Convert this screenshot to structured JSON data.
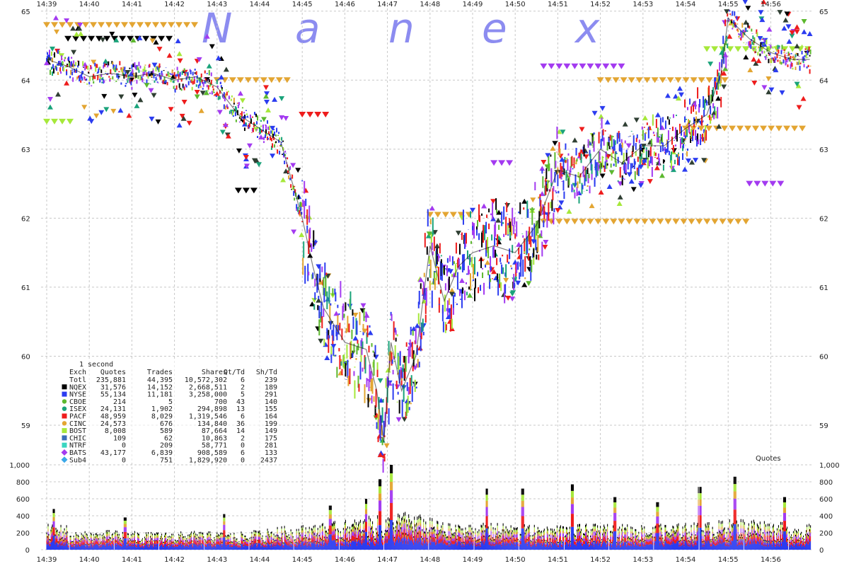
{
  "watermark": [
    "N",
    "a",
    "n",
    "e",
    "x"
  ],
  "chart_data": [
    {
      "type": "scatter",
      "title": "",
      "xlabel": "",
      "ylabel": "",
      "x_ticks": [
        "14:39",
        "14:40",
        "14:41",
        "14:42",
        "14:43",
        "14:44",
        "14:45",
        "14:46",
        "14:47",
        "14:48",
        "14:49",
        "14:50",
        "14:51",
        "14:52",
        "14:53",
        "14:54",
        "14:55",
        "14:56"
      ],
      "y_ticks": [
        "65",
        "64",
        "63",
        "62",
        "61",
        "60",
        "59"
      ],
      "ylim": [
        58.6,
        65.1
      ],
      "grid": true,
      "price_path": [
        {
          "t": "14:39:00",
          "v": 64.3
        },
        {
          "t": "14:39:30",
          "v": 64.2
        },
        {
          "t": "14:40:00",
          "v": 64.05
        },
        {
          "t": "14:40:30",
          "v": 64.1
        },
        {
          "t": "14:41:00",
          "v": 64.05
        },
        {
          "t": "14:41:30",
          "v": 64.1
        },
        {
          "t": "14:42:00",
          "v": 64.0
        },
        {
          "t": "14:42:30",
          "v": 64.05
        },
        {
          "t": "14:43:00",
          "v": 63.9
        },
        {
          "t": "14:43:30",
          "v": 63.5
        },
        {
          "t": "14:44:00",
          "v": 63.3
        },
        {
          "t": "14:44:30",
          "v": 63.1
        },
        {
          "t": "14:45:00",
          "v": 62.0
        },
        {
          "t": "14:45:15",
          "v": 61.3
        },
        {
          "t": "14:45:30",
          "v": 60.7
        },
        {
          "t": "14:46:00",
          "v": 60.2
        },
        {
          "t": "14:46:30",
          "v": 60.1
        },
        {
          "t": "14:46:45",
          "v": 59.5
        },
        {
          "t": "14:46:55",
          "v": 58.75
        },
        {
          "t": "14:47:05",
          "v": 60.2
        },
        {
          "t": "14:47:20",
          "v": 59.5
        },
        {
          "t": "14:47:40",
          "v": 60.0
        },
        {
          "t": "14:48:00",
          "v": 61.6
        },
        {
          "t": "14:48:20",
          "v": 60.8
        },
        {
          "t": "14:48:40",
          "v": 61.3
        },
        {
          "t": "14:49:00",
          "v": 61.5
        },
        {
          "t": "14:49:30",
          "v": 61.6
        },
        {
          "t": "14:50:00",
          "v": 61.5
        },
        {
          "t": "14:50:30",
          "v": 61.9
        },
        {
          "t": "14:51:00",
          "v": 62.7
        },
        {
          "t": "14:51:30",
          "v": 62.6
        },
        {
          "t": "14:52:00",
          "v": 63.0
        },
        {
          "t": "14:52:30",
          "v": 62.8
        },
        {
          "t": "14:53:00",
          "v": 63.05
        },
        {
          "t": "14:53:30",
          "v": 63.05
        },
        {
          "t": "14:54:00",
          "v": 63.3
        },
        {
          "t": "14:54:30",
          "v": 63.5
        },
        {
          "t": "14:54:50",
          "v": 64.1
        },
        {
          "t": "14:55:00",
          "v": 64.9
        },
        {
          "t": "14:55:30",
          "v": 64.6
        },
        {
          "t": "14:56:00",
          "v": 64.4
        },
        {
          "t": "14:56:30",
          "v": 64.3
        },
        {
          "t": "14:56:55",
          "v": 64.3
        }
      ],
      "quote_levels": [
        {
          "exchange": "CINC",
          "v": 64.8,
          "from": "14:39:00",
          "to": "14:42:30"
        },
        {
          "exchange": "CINC",
          "v": 64.0,
          "from": "14:43:00",
          "to": "14:44:40"
        },
        {
          "exchange": "CINC",
          "v": 62.05,
          "from": "14:48:00",
          "to": "14:49:00"
        },
        {
          "exchange": "CINC",
          "v": 61.95,
          "from": "14:50:40",
          "to": "14:55:30"
        },
        {
          "exchange": "CINC",
          "v": 63.3,
          "from": "14:54:00",
          "to": "14:56:55"
        },
        {
          "exchange": "CINC",
          "v": 64.0,
          "from": "14:52:00",
          "to": "14:55:00"
        },
        {
          "exchange": "BATS",
          "v": 64.2,
          "from": "14:50:40",
          "to": "14:52:40"
        },
        {
          "exchange": "BATS",
          "v": 62.8,
          "from": "14:49:30",
          "to": "14:50:00"
        },
        {
          "exchange": "BATS",
          "v": 62.5,
          "from": "14:55:30",
          "to": "14:56:20"
        },
        {
          "exchange": "PACF",
          "v": 63.5,
          "from": "14:45:00",
          "to": "14:45:40"
        },
        {
          "exchange": "NQEX",
          "v": 64.6,
          "from": "14:39:30",
          "to": "14:42:00"
        },
        {
          "exchange": "NQEX",
          "v": 62.4,
          "from": "14:43:30",
          "to": "14:44:00"
        },
        {
          "exchange": "BOST",
          "v": 63.4,
          "from": "14:39:00",
          "to": "14:39:40"
        },
        {
          "exchange": "BOST",
          "v": 64.45,
          "from": "14:54:30",
          "to": "14:56:55"
        }
      ]
    },
    {
      "type": "bar",
      "series_label": "Quotes",
      "y_ticks": [
        "1,000",
        "800",
        "600",
        "400",
        "200",
        "0"
      ],
      "ylim": [
        0,
        1000
      ],
      "x_ticks": [
        "14:39",
        "14:40",
        "14:41",
        "14:42",
        "14:43",
        "14:44",
        "14:45",
        "14:46",
        "14:47",
        "14:48",
        "14:49",
        "14:50",
        "14:51",
        "14:52",
        "14:53",
        "14:54",
        "14:55",
        "14:56"
      ],
      "profile": [
        {
          "t": "14:39",
          "v": 150
        },
        {
          "t": "14:40",
          "v": 170
        },
        {
          "t": "14:41",
          "v": 150
        },
        {
          "t": "14:42",
          "v": 160
        },
        {
          "t": "14:43",
          "v": 150
        },
        {
          "t": "14:44",
          "v": 200
        },
        {
          "t": "14:45",
          "v": 230
        },
        {
          "t": "14:46",
          "v": 280
        },
        {
          "t": "14:47",
          "v": 330
        },
        {
          "t": "14:48",
          "v": 220
        },
        {
          "t": "14:49",
          "v": 230
        },
        {
          "t": "14:50",
          "v": 210
        },
        {
          "t": "14:51",
          "v": 220
        },
        {
          "t": "14:52",
          "v": 220
        },
        {
          "t": "14:53",
          "v": 220
        },
        {
          "t": "14:54",
          "v": 240
        },
        {
          "t": "14:55",
          "v": 280
        },
        {
          "t": "14:56",
          "v": 220
        }
      ],
      "peaks": [
        {
          "t": "14:39:10",
          "v": 480
        },
        {
          "t": "14:40:50",
          "v": 380
        },
        {
          "t": "14:43:10",
          "v": 420
        },
        {
          "t": "14:45:40",
          "v": 520
        },
        {
          "t": "14:46:30",
          "v": 600
        },
        {
          "t": "14:46:50",
          "v": 830
        },
        {
          "t": "14:47:05",
          "v": 1000
        },
        {
          "t": "14:49:20",
          "v": 720
        },
        {
          "t": "14:50:10",
          "v": 720
        },
        {
          "t": "14:51:20",
          "v": 770
        },
        {
          "t": "14:52:20",
          "v": 620
        },
        {
          "t": "14:53:20",
          "v": 560
        },
        {
          "t": "14:54:20",
          "v": 740
        },
        {
          "t": "14:55:10",
          "v": 860
        },
        {
          "t": "14:56:20",
          "v": 620
        }
      ]
    }
  ],
  "legend": {
    "interval": "1 second",
    "headers": [
      "Exch",
      "Quotes",
      "Trades",
      "Shares",
      "Qt/Td",
      "Sh/Td"
    ],
    "rows": [
      {
        "exch": "Totl",
        "quotes": "235,881",
        "trades": "44,395",
        "shares": "10,572,302",
        "qt_td": "6",
        "sh_td": "239",
        "color": "",
        "marker": "none"
      },
      {
        "exch": "NQEX",
        "quotes": "31,576",
        "trades": "14,152",
        "shares": "2,668,511",
        "qt_td": "2",
        "sh_td": "189",
        "color": "#000000",
        "marker": "square"
      },
      {
        "exch": "NYSE",
        "quotes": "55,134",
        "trades": "11,181",
        "shares": "3,258,000",
        "qt_td": "5",
        "sh_td": "291",
        "color": "#2b3cf0",
        "marker": "square"
      },
      {
        "exch": "CBOE",
        "quotes": "214",
        "trades": "5",
        "shares": "700",
        "qt_td": "43",
        "sh_td": "140",
        "color": "#5cb82e",
        "marker": "circle"
      },
      {
        "exch": "ISEX",
        "quotes": "24,131",
        "trades": "1,902",
        "shares": "294,898",
        "qt_td": "13",
        "sh_td": "155",
        "color": "#1aa37a",
        "marker": "circle"
      },
      {
        "exch": "PACF",
        "quotes": "48,959",
        "trades": "8,029",
        "shares": "1,319,546",
        "qt_td": "6",
        "sh_td": "164",
        "color": "#ee1c1c",
        "marker": "square"
      },
      {
        "exch": "CINC",
        "quotes": "24,573",
        "trades": "676",
        "shares": "134,840",
        "qt_td": "36",
        "sh_td": "199",
        "color": "#e3a532",
        "marker": "circle"
      },
      {
        "exch": "BOST",
        "quotes": "8,008",
        "trades": "589",
        "shares": "87,664",
        "qt_td": "14",
        "sh_td": "149",
        "color": "#a6e83a",
        "marker": "square"
      },
      {
        "exch": "CHIC",
        "quotes": "109",
        "trades": "62",
        "shares": "10,863",
        "qt_td": "2",
        "sh_td": "175",
        "color": "#3a6eb8",
        "marker": "square"
      },
      {
        "exch": "NTRF",
        "quotes": "0",
        "trades": "209",
        "shares": "58,771",
        "qt_td": "0",
        "sh_td": "281",
        "color": "#3ad6c0",
        "marker": "square"
      },
      {
        "exch": "BATS",
        "quotes": "43,177",
        "trades": "6,839",
        "shares": "908,589",
        "qt_td": "6",
        "sh_td": "133",
        "color": "#a33af0",
        "marker": "diamond"
      },
      {
        "exch": "Sub4",
        "quotes": "0",
        "trades": "751",
        "shares": "1,829,920",
        "qt_td": "0",
        "sh_td": "2437",
        "color": "#3aa8e8",
        "marker": "diamond"
      }
    ]
  },
  "colors": {
    "NQEX": "#000000",
    "NYSE": "#2b3cf0",
    "CBOE": "#5cb82e",
    "ISEX": "#1aa37a",
    "PACF": "#ee1c1c",
    "CINC": "#e3a532",
    "BOST": "#a6e83a",
    "CHIC": "#3a6eb8",
    "NTRF": "#3ad6c0",
    "BATS": "#a33af0",
    "Sub4": "#3aa8e8",
    "dark_marker": "#2f3f33"
  }
}
